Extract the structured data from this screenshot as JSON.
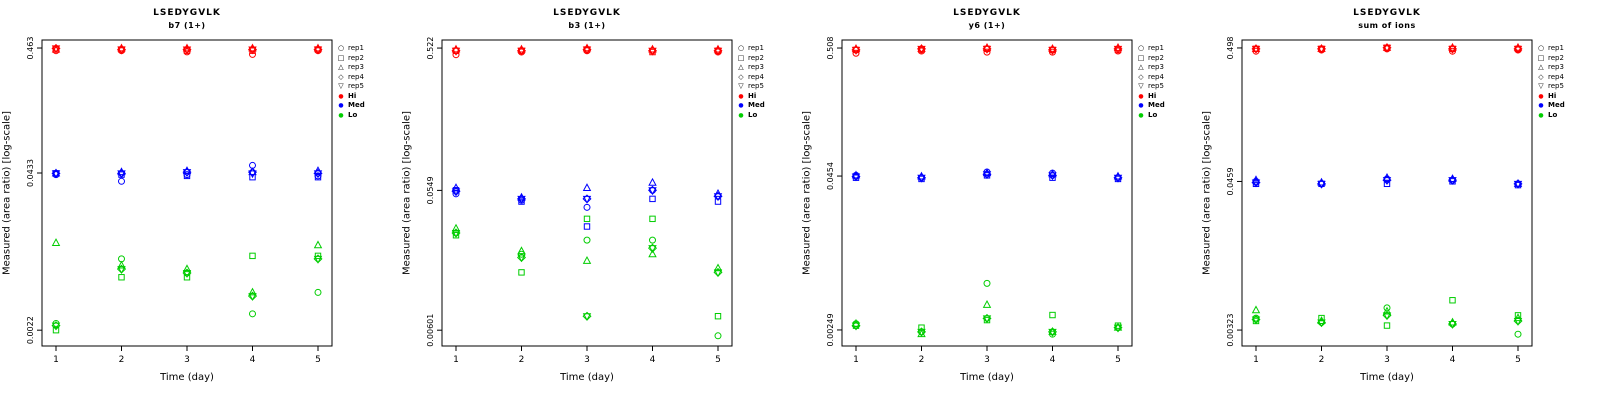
{
  "figure": {
    "ylabel": "Measured (area ratio) [log-scale]",
    "xlabel": "Time (day)"
  },
  "legend": {
    "reps": [
      {
        "label": "rep1",
        "symbol": "circle",
        "glyph": "○"
      },
      {
        "label": "rep2",
        "symbol": "square",
        "glyph": "□"
      },
      {
        "label": "rep3",
        "symbol": "triangle-up",
        "glyph": "△"
      },
      {
        "label": "rep4",
        "symbol": "diamond",
        "glyph": "◇"
      },
      {
        "label": "rep5",
        "symbol": "triangle-down",
        "glyph": "▽"
      }
    ],
    "groups": [
      {
        "label": "Hi",
        "color": "#ff0000"
      },
      {
        "label": "Med",
        "color": "#0000ff"
      },
      {
        "label": "Lo",
        "color": "#00cd00"
      }
    ]
  },
  "chart_data": [
    {
      "type": "scatter",
      "title": "LSEDYGVLK",
      "subtitle": "b7 (1+)",
      "xlabel": "Time (day)",
      "ylabel": "Measured (area ratio) [log-scale]",
      "yscale": "log",
      "x": [
        1,
        2,
        3,
        4,
        5
      ],
      "ylim": [
        0.00163,
        0.539
      ],
      "yticks": [
        {
          "value": 0.463,
          "label": "0.463"
        },
        {
          "value": 0.0433,
          "label": "0.0433"
        },
        {
          "value": 0.0022,
          "label": "0.0022"
        }
      ],
      "groups": [
        {
          "name": "Hi",
          "color": "#ff0000",
          "series": [
            {
              "rep": "rep1",
              "symbol": "circle",
              "values": [
                0.44,
                0.44,
                0.43,
                0.41,
                0.44
              ]
            },
            {
              "rep": "rep2",
              "symbol": "square",
              "values": [
                0.45,
                0.45,
                0.44,
                0.44,
                0.45
              ]
            },
            {
              "rep": "rep3",
              "symbol": "triangle-up",
              "values": [
                0.45,
                0.46,
                0.46,
                0.46,
                0.46
              ]
            },
            {
              "rep": "rep4",
              "symbol": "diamond",
              "values": [
                0.46,
                0.45,
                0.45,
                0.45,
                0.45
              ]
            },
            {
              "rep": "rep5",
              "symbol": "triangle-down",
              "values": [
                0.46,
                0.45,
                0.45,
                0.45,
                0.45
              ]
            }
          ]
        },
        {
          "name": "Med",
          "color": "#0000ff",
          "series": [
            {
              "rep": "rep1",
              "symbol": "circle",
              "values": [
                0.042,
                0.037,
                0.042,
                0.05,
                0.041
              ]
            },
            {
              "rep": "rep2",
              "symbol": "square",
              "values": [
                0.043,
                0.042,
                0.041,
                0.04,
                0.04
              ]
            },
            {
              "rep": "rep3",
              "symbol": "triangle-up",
              "values": [
                0.043,
                0.044,
                0.045,
                0.044,
                0.045
              ]
            },
            {
              "rep": "rep4",
              "symbol": "diamond",
              "values": [
                0.043,
                0.043,
                0.044,
                0.044,
                0.043
              ]
            },
            {
              "rep": "rep5",
              "symbol": "triangle-down",
              "values": [
                0.043,
                0.043,
                0.044,
                0.043,
                0.043
              ]
            }
          ]
        },
        {
          "name": "Lo",
          "color": "#00cd00",
          "series": [
            {
              "rep": "rep1",
              "symbol": "circle",
              "values": [
                0.0025,
                0.0085,
                0.0065,
                0.003,
                0.0045
              ]
            },
            {
              "rep": "rep2",
              "symbol": "square",
              "values": [
                0.0022,
                0.006,
                0.006,
                0.009,
                0.009
              ]
            },
            {
              "rep": "rep3",
              "symbol": "triangle-up",
              "values": [
                0.0115,
                0.0075,
                0.007,
                0.0045,
                0.011
              ]
            },
            {
              "rep": "rep4",
              "symbol": "diamond",
              "values": [
                0.0024,
                0.007,
                0.0065,
                0.0042,
                0.0085
              ]
            },
            {
              "rep": "rep5",
              "symbol": "triangle-down",
              "values": [
                0.0024,
                0.007,
                0.0065,
                0.0042,
                0.0085
              ]
            }
          ]
        }
      ]
    },
    {
      "type": "scatter",
      "title": "LSEDYGVLK",
      "subtitle": "b3 (1+)",
      "xlabel": "Time (day)",
      "ylabel": "Measured (area ratio) [log-scale]",
      "yscale": "log",
      "x": [
        1,
        2,
        3,
        4,
        5
      ],
      "ylim": [
        0.00468,
        0.593
      ],
      "yticks": [
        {
          "value": 0.522,
          "label": "0.522"
        },
        {
          "value": 0.0549,
          "label": "0.0549"
        },
        {
          "value": 0.00601,
          "label": "0.00601"
        }
      ],
      "groups": [
        {
          "name": "Hi",
          "color": "#ff0000",
          "series": [
            {
              "rep": "rep1",
              "symbol": "circle",
              "values": [
                0.47,
                0.49,
                0.5,
                0.5,
                0.49
              ]
            },
            {
              "rep": "rep2",
              "symbol": "square",
              "values": [
                0.5,
                0.5,
                0.51,
                0.49,
                0.5
              ]
            },
            {
              "rep": "rep3",
              "symbol": "triangle-up",
              "values": [
                0.51,
                0.51,
                0.52,
                0.51,
                0.51
              ]
            },
            {
              "rep": "rep4",
              "symbol": "diamond",
              "values": [
                0.5,
                0.5,
                0.51,
                0.5,
                0.5
              ]
            },
            {
              "rep": "rep5",
              "symbol": "triangle-down",
              "values": [
                0.5,
                0.5,
                0.51,
                0.5,
                0.5
              ]
            }
          ]
        },
        {
          "name": "Med",
          "color": "#0000ff",
          "series": [
            {
              "rep": "rep1",
              "symbol": "circle",
              "values": [
                0.052,
                0.047,
                0.042,
                0.055,
                0.05
              ]
            },
            {
              "rep": "rep2",
              "symbol": "square",
              "values": [
                0.055,
                0.046,
                0.031,
                0.048,
                0.046
              ]
            },
            {
              "rep": "rep3",
              "symbol": "triangle-up",
              "values": [
                0.057,
                0.049,
                0.057,
                0.062,
                0.052
              ]
            },
            {
              "rep": "rep4",
              "symbol": "diamond",
              "values": [
                0.054,
                0.048,
                0.048,
                0.055,
                0.05
              ]
            },
            {
              "rep": "rep5",
              "symbol": "triangle-down",
              "values": [
                0.054,
                0.048,
                0.048,
                0.055,
                0.05
              ]
            }
          ]
        },
        {
          "name": "Lo",
          "color": "#00cd00",
          "series": [
            {
              "rep": "rep1",
              "symbol": "circle",
              "values": [
                0.028,
                0.02,
                0.025,
                0.025,
                0.0055
              ]
            },
            {
              "rep": "rep2",
              "symbol": "square",
              "values": [
                0.027,
                0.015,
                0.035,
                0.035,
                0.0075
              ]
            },
            {
              "rep": "rep3",
              "symbol": "triangle-up",
              "values": [
                0.03,
                0.021,
                0.018,
                0.02,
                0.016
              ]
            },
            {
              "rep": "rep4",
              "symbol": "diamond",
              "values": [
                0.028,
                0.019,
                0.0075,
                0.022,
                0.015
              ]
            },
            {
              "rep": "rep5",
              "symbol": "triangle-down",
              "values": [
                0.028,
                0.019,
                0.0075,
                0.022,
                0.015
              ]
            }
          ]
        }
      ]
    },
    {
      "type": "scatter",
      "title": "LSEDYGVLK",
      "subtitle": "y6 (1+)",
      "xlabel": "Time (day)",
      "ylabel": "Measured (area ratio) [log-scale]",
      "yscale": "log",
      "x": [
        1,
        2,
        3,
        4,
        5
      ],
      "ylim": [
        0.00184,
        0.591
      ],
      "yticks": [
        {
          "value": 0.508,
          "label": "0.508"
        },
        {
          "value": 0.0454,
          "label": "0.0454"
        },
        {
          "value": 0.00249,
          "label": "0.00249"
        }
      ],
      "groups": [
        {
          "name": "Hi",
          "color": "#ff0000",
          "series": [
            {
              "rep": "rep1",
              "symbol": "circle",
              "values": [
                0.46,
                0.48,
                0.47,
                0.47,
                0.48
              ]
            },
            {
              "rep": "rep2",
              "symbol": "square",
              "values": [
                0.49,
                0.49,
                0.5,
                0.49,
                0.49
              ]
            },
            {
              "rep": "rep3",
              "symbol": "triangle-up",
              "values": [
                0.5,
                0.5,
                0.51,
                0.5,
                0.51
              ]
            },
            {
              "rep": "rep4",
              "symbol": "diamond",
              "values": [
                0.49,
                0.5,
                0.5,
                0.49,
                0.5
              ]
            },
            {
              "rep": "rep5",
              "symbol": "triangle-down",
              "values": [
                0.49,
                0.5,
                0.5,
                0.49,
                0.5
              ]
            }
          ]
        },
        {
          "name": "Med",
          "color": "#0000ff",
          "series": [
            {
              "rep": "rep1",
              "symbol": "circle",
              "values": [
                0.046,
                0.044,
                0.049,
                0.048,
                0.044
              ]
            },
            {
              "rep": "rep2",
              "symbol": "square",
              "values": [
                0.044,
                0.043,
                0.046,
                0.044,
                0.043
              ]
            },
            {
              "rep": "rep3",
              "symbol": "triangle-up",
              "values": [
                0.046,
                0.045,
                0.048,
                0.047,
                0.045
              ]
            },
            {
              "rep": "rep4",
              "symbol": "diamond",
              "values": [
                0.045,
                0.044,
                0.047,
                0.046,
                0.044
              ]
            },
            {
              "rep": "rep5",
              "symbol": "triangle-down",
              "values": [
                0.045,
                0.044,
                0.047,
                0.046,
                0.044
              ]
            }
          ]
        },
        {
          "name": "Lo",
          "color": "#00cd00",
          "series": [
            {
              "rep": "rep1",
              "symbol": "circle",
              "values": [
                0.0028,
                0.0024,
                0.006,
                0.0023,
                0.0026
              ]
            },
            {
              "rep": "rep2",
              "symbol": "square",
              "values": [
                0.0027,
                0.0026,
                0.003,
                0.0033,
                0.0027
              ]
            },
            {
              "rep": "rep3",
              "symbol": "triangle-up",
              "values": [
                0.0028,
                0.0023,
                0.004,
                0.0024,
                0.0026
              ]
            },
            {
              "rep": "rep4",
              "symbol": "diamond",
              "values": [
                0.0027,
                0.0024,
                0.0031,
                0.0024,
                0.0026
              ]
            },
            {
              "rep": "rep5",
              "symbol": "triangle-down",
              "values": [
                0.0027,
                0.0024,
                0.0031,
                0.0024,
                0.0026
              ]
            }
          ]
        }
      ]
    },
    {
      "type": "scatter",
      "title": "LSEDYGVLK",
      "subtitle": "sum of ions",
      "xlabel": "Time (day)",
      "ylabel": "Measured (area ratio) [log-scale]",
      "yscale": "log",
      "x": [
        1,
        2,
        3,
        4,
        5
      ],
      "ylim": [
        0.00243,
        0.574
      ],
      "yticks": [
        {
          "value": 0.498,
          "label": "0.498"
        },
        {
          "value": 0.0459,
          "label": "0.0459"
        },
        {
          "value": 0.00323,
          "label": "0.00323"
        }
      ],
      "groups": [
        {
          "name": "Hi",
          "color": "#ff0000",
          "series": [
            {
              "rep": "rep1",
              "symbol": "circle",
              "values": [
                0.47,
                0.48,
                0.49,
                0.47,
                0.48
              ]
            },
            {
              "rep": "rep2",
              "symbol": "square",
              "values": [
                0.49,
                0.49,
                0.5,
                0.49,
                0.49
              ]
            },
            {
              "rep": "rep3",
              "symbol": "triangle-up",
              "values": [
                0.49,
                0.49,
                0.5,
                0.5,
                0.5
              ]
            },
            {
              "rep": "rep4",
              "symbol": "diamond",
              "values": [
                0.49,
                0.49,
                0.5,
                0.49,
                0.49
              ]
            },
            {
              "rep": "rep5",
              "symbol": "triangle-down",
              "values": [
                0.49,
                0.49,
                0.5,
                0.49,
                0.49
              ]
            }
          ]
        },
        {
          "name": "Med",
          "color": "#0000ff",
          "series": [
            {
              "rep": "rep1",
              "symbol": "circle",
              "values": [
                0.046,
                0.044,
                0.048,
                0.047,
                0.044
              ]
            },
            {
              "rep": "rep2",
              "symbol": "square",
              "values": [
                0.044,
                0.044,
                0.044,
                0.046,
                0.043
              ]
            },
            {
              "rep": "rep3",
              "symbol": "triangle-up",
              "values": [
                0.047,
                0.045,
                0.049,
                0.048,
                0.044
              ]
            },
            {
              "rep": "rep4",
              "symbol": "diamond",
              "values": [
                0.045,
                0.044,
                0.047,
                0.047,
                0.044
              ]
            },
            {
              "rep": "rep5",
              "symbol": "triangle-down",
              "values": [
                0.045,
                0.044,
                0.047,
                0.047,
                0.044
              ]
            }
          ]
        },
        {
          "name": "Lo",
          "color": "#00cd00",
          "series": [
            {
              "rep": "rep1",
              "symbol": "circle",
              "values": [
                0.004,
                0.0037,
                0.0048,
                0.0036,
                0.003
              ]
            },
            {
              "rep": "rep2",
              "symbol": "square",
              "values": [
                0.0038,
                0.004,
                0.0035,
                0.0055,
                0.0042
              ]
            },
            {
              "rep": "rep3",
              "symbol": "triangle-up",
              "values": [
                0.0046,
                0.0038,
                0.0045,
                0.0037,
                0.004
              ]
            },
            {
              "rep": "rep4",
              "symbol": "diamond",
              "values": [
                0.0039,
                0.0037,
                0.0042,
                0.0036,
                0.0038
              ]
            },
            {
              "rep": "rep5",
              "symbol": "triangle-down",
              "values": [
                0.0039,
                0.0037,
                0.0042,
                0.0036,
                0.0038
              ]
            }
          ]
        }
      ]
    }
  ]
}
